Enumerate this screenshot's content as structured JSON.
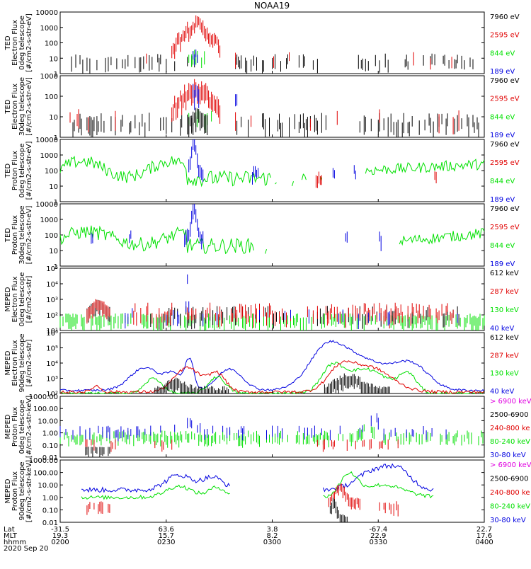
{
  "title": "NOAA19",
  "colors": {
    "black": "#000000",
    "red": "#e00000",
    "green": "#00e000",
    "blue": "#0000e0",
    "magenta": "#e000e0"
  },
  "panels": [
    {
      "ylabel": [
        "TED",
        "Electron Flux",
        "0deg telescope",
        "[#/cm2-s-str-eV]"
      ],
      "ticks": [
        "10000",
        "1000",
        "100",
        "10",
        "1"
      ],
      "legend": [
        {
          "text": "7960 eV",
          "color": "black"
        },
        {
          "text": "2595 eV",
          "color": "red"
        },
        {
          "text": "844 eV",
          "color": "green"
        },
        {
          "text": "189 eV",
          "color": "blue"
        }
      ]
    },
    {
      "ylabel": [
        "TED",
        "Electron Flux",
        "30deg telescope",
        "[#/cm2-s-str-eV]"
      ],
      "ticks": [
        "1000",
        "100",
        "10",
        "1"
      ],
      "legend": [
        {
          "text": "7960 eV",
          "color": "black"
        },
        {
          "text": "2595 eV",
          "color": "red"
        },
        {
          "text": "844 eV",
          "color": "green"
        },
        {
          "text": "189 eV",
          "color": "blue"
        }
      ]
    },
    {
      "ylabel": [
        "TED",
        "Proton Flux",
        "0deg telescope",
        "[#/cm2-s-str-eV]"
      ],
      "ticks": [
        "10000",
        "1000",
        "100",
        "10",
        "1"
      ],
      "legend": [
        {
          "text": "7960 eV",
          "color": "black"
        },
        {
          "text": "2595 eV",
          "color": "red"
        },
        {
          "text": "844 eV",
          "color": "green"
        },
        {
          "text": "189 eV",
          "color": "blue"
        }
      ]
    },
    {
      "ylabel": [
        "TED",
        "Proton Flux",
        "30deg telescope",
        "[#/cm2-s-str-eV]"
      ],
      "ticks": [
        "10000",
        "1000",
        "100",
        "10",
        "1"
      ],
      "legend": [
        {
          "text": "7960 eV",
          "color": "black"
        },
        {
          "text": "2595 eV",
          "color": "red"
        },
        {
          "text": "844 eV",
          "color": "green"
        },
        {
          "text": "189 eV",
          "color": "blue"
        }
      ]
    },
    {
      "ylabel": [
        "MEPED",
        "Electron Flux",
        "0deg telescope",
        "[#/cm2-s-str]"
      ],
      "ticks": [
        "10⁵",
        "10⁴",
        "10³",
        "10²",
        "10¹"
      ],
      "legend": [
        {
          "text": "612 keV",
          "color": "black"
        },
        {
          "text": "287 keV",
          "color": "red"
        },
        {
          "text": "130 keV",
          "color": "green"
        },
        {
          "text": "40 keV",
          "color": "blue"
        }
      ]
    },
    {
      "ylabel": [
        "MEPED",
        "Electron Flux",
        "90deg telescope",
        "[#/cm2-s-str]"
      ],
      "ticks": [
        "10⁶",
        "10⁵",
        "10⁴",
        "10³",
        "10²"
      ],
      "legend": [
        {
          "text": "612 keV",
          "color": "black"
        },
        {
          "text": "287 keV",
          "color": "red"
        },
        {
          "text": "130 keV",
          "color": "green"
        },
        {
          "text": "40 keV",
          "color": "blue"
        }
      ]
    },
    {
      "ylabel": [
        "MEPED",
        "Proton Flux",
        "0deg telescope",
        "[#/cm2-s-str-keV]"
      ],
      "ticks": [
        "1000.00",
        "100.00",
        "10.00",
        "1.00",
        "0.10",
        "0.01"
      ],
      "legend": [
        {
          "text": "> 6900 keV",
          "color": "magenta"
        },
        {
          "text": "2500-6900",
          "color": "black"
        },
        {
          "text": "240-800 ke",
          "color": "red"
        },
        {
          "text": "80-240 keV",
          "color": "green"
        },
        {
          "text": "30-80 keV",
          "color": "blue"
        }
      ]
    },
    {
      "ylabel": [
        "MEPED",
        "Proton Flux",
        "90deg telescope",
        "[#/cm2-s-str-keV]"
      ],
      "ticks": [
        "1000.00",
        "100.00",
        "10.00",
        "1.00",
        "0.10",
        "0.01"
      ],
      "legend": [
        {
          "text": "> 6900 keV",
          "color": "magenta"
        },
        {
          "text": "2500-6900",
          "color": "black"
        },
        {
          "text": "240-800 ke",
          "color": "red"
        },
        {
          "text": "80-240 keV",
          "color": "green"
        },
        {
          "text": "30-80 keV",
          "color": "blue"
        }
      ]
    }
  ],
  "xaxis": {
    "row_labels": [
      "Lat",
      "MLT",
      "hhmm"
    ],
    "date": "2020 Sep 20",
    "ticks": [
      {
        "lat": "-31.5",
        "mlt": "19.3",
        "hhmm": "0200"
      },
      {
        "lat": "63.6",
        "mlt": "15.7",
        "hhmm": "0230"
      },
      {
        "lat": "3.8",
        "mlt": "8.2",
        "hhmm": "0300"
      },
      {
        "lat": "-67.4",
        "mlt": "22.9",
        "hhmm": "0330"
      },
      {
        "lat": "22.7",
        "mlt": "17.6",
        "hhmm": "0400"
      }
    ]
  },
  "chart_data": [
    {
      "type": "line",
      "title": "NOAA19",
      "xlabel": "hhmm",
      "x": [
        "0200",
        "0230",
        "0300",
        "0330",
        "0400"
      ],
      "yscale": "log",
      "ylim": [
        1,
        10000
      ],
      "series": [
        {
          "name": "7960 eV",
          "features": "sporadic ~10 across pass"
        },
        {
          "name": "2595 eV",
          "peak_x": "0226",
          "peak_value": 1000
        },
        {
          "name": "844 eV",
          "peak_x": "0227",
          "peak_value": 100
        },
        {
          "name": "189 eV"
        }
      ]
    },
    {
      "type": "line",
      "yscale": "log",
      "ylim": [
        1,
        1000
      ],
      "series": [
        {
          "name": "7960 eV",
          "features": "sporadic ~10"
        },
        {
          "name": "2595 eV",
          "peak_x": "0226",
          "peak_value": 500
        },
        {
          "name": "844 eV",
          "peak_x": "0227",
          "peak_value": 50
        },
        {
          "name": "189 eV",
          "peak_x": "0226",
          "peak_value": 500
        }
      ]
    },
    {
      "type": "line",
      "yscale": "log",
      "ylim": [
        1,
        10000
      ],
      "series": [
        {
          "name": "7960 eV"
        },
        {
          "name": "2595 eV"
        },
        {
          "name": "844 eV",
          "typical_value": 100
        },
        {
          "name": "189 eV",
          "peak_x": "0229",
          "peak_value": 8000
        }
      ]
    },
    {
      "type": "line",
      "yscale": "log",
      "ylim": [
        1,
        10000
      ],
      "series": [
        {
          "name": "7960 eV"
        },
        {
          "name": "2595 eV"
        },
        {
          "name": "844 eV",
          "typical_value": 30
        },
        {
          "name": "189 eV",
          "peak_x": "0229",
          "peak_value": 8000
        }
      ]
    },
    {
      "type": "line",
      "yscale": "log",
      "ylim": [
        10,
        100000
      ],
      "series": [
        {
          "name": "612 keV"
        },
        {
          "name": "287 keV",
          "typical_value": 300
        },
        {
          "name": "130 keV",
          "typical_value": 100
        },
        {
          "name": "40 keV",
          "peak_x": "0229",
          "peak_value": 50000
        }
      ]
    },
    {
      "type": "line",
      "yscale": "log",
      "ylim": [
        100,
        1000000
      ],
      "series": [
        {
          "name": "612 keV"
        },
        {
          "name": "287 keV"
        },
        {
          "name": "130 keV"
        },
        {
          "name": "40 keV",
          "peak_x": "0324",
          "peak_value": 30000
        }
      ]
    },
    {
      "type": "line",
      "yscale": "log",
      "ylim": [
        0.01,
        1000
      ],
      "series": [
        {
          "name": "> 6900 keV"
        },
        {
          "name": "2500-6900"
        },
        {
          "name": "240-800 ke"
        },
        {
          "name": "80-240 keV"
        },
        {
          "name": "30-80 keV",
          "peak_x": "0332",
          "peak_value": 100
        }
      ]
    },
    {
      "type": "line",
      "yscale": "log",
      "ylim": [
        0.01,
        1000
      ],
      "series": [
        {
          "name": "> 6900 keV"
        },
        {
          "name": "2500-6900"
        },
        {
          "name": "240-800 ke",
          "peak_x": "0323",
          "peak_value": 10
        },
        {
          "name": "80-240 keV",
          "peak_x": "0324",
          "peak_value": 50
        },
        {
          "name": "30-80 keV",
          "peak_x": "0333",
          "peak_value": 200
        }
      ]
    }
  ]
}
